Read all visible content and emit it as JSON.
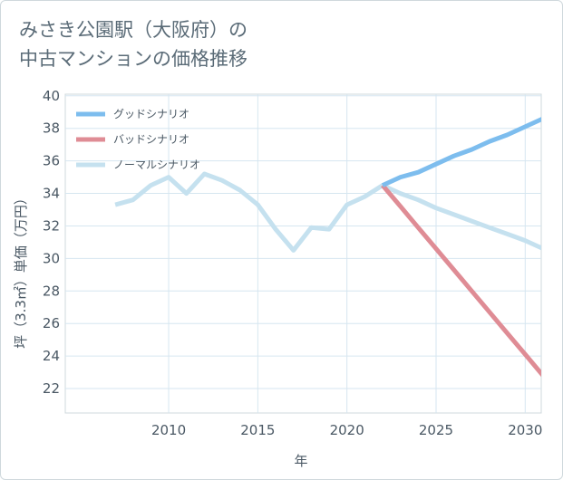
{
  "title_line1": "みさき公園駅（大阪府）の",
  "title_line2": "中古マンションの価格推移",
  "chart_data": {
    "type": "line",
    "title": "みさき公園駅（大阪府）の中古マンションの価格推移",
    "xlabel": "年",
    "ylabel": "坪（3.3㎡）単価（万円）",
    "xlim": [
      2004.2,
      2030.9
    ],
    "ylim": [
      20.5,
      40.1
    ],
    "xticks": [
      2010,
      2015,
      2020,
      2025,
      2030
    ],
    "yticks": [
      22,
      24,
      26,
      28,
      30,
      32,
      34,
      36,
      38,
      40
    ],
    "grid": true,
    "legend_position": "top-left",
    "series": [
      {
        "name": "グッドシナリオ",
        "color": "#7dbdee",
        "x": [
          2022,
          2023,
          2024,
          2025,
          2026,
          2027,
          2028,
          2029,
          2030,
          2031
        ],
        "y": [
          34.5,
          35.0,
          35.3,
          35.8,
          36.3,
          36.7,
          37.2,
          37.6,
          38.1,
          38.6
        ]
      },
      {
        "name": "バッドシナリオ",
        "color": "#df8c95",
        "x": [
          2022,
          2023,
          2024,
          2025,
          2026,
          2027,
          2028,
          2029,
          2030,
          2031
        ],
        "y": [
          34.5,
          33.2,
          31.9,
          30.6,
          29.3,
          28.0,
          26.7,
          25.4,
          24.1,
          22.8
        ]
      },
      {
        "name": "ノーマルシナリオ",
        "color": "#c5e1ef",
        "x": [
          2007,
          2008,
          2009,
          2010,
          2011,
          2012,
          2013,
          2014,
          2015,
          2016,
          2017,
          2018,
          2019,
          2020,
          2021,
          2022,
          2023,
          2024,
          2025,
          2026,
          2027,
          2028,
          2029,
          2030,
          2031
        ],
        "y": [
          33.3,
          33.6,
          34.5,
          35.0,
          34.0,
          35.2,
          34.8,
          34.2,
          33.3,
          31.8,
          30.5,
          31.9,
          31.8,
          33.3,
          33.8,
          34.5,
          34.0,
          33.6,
          33.1,
          32.7,
          32.3,
          31.9,
          31.5,
          31.1,
          30.6
        ]
      }
    ]
  }
}
